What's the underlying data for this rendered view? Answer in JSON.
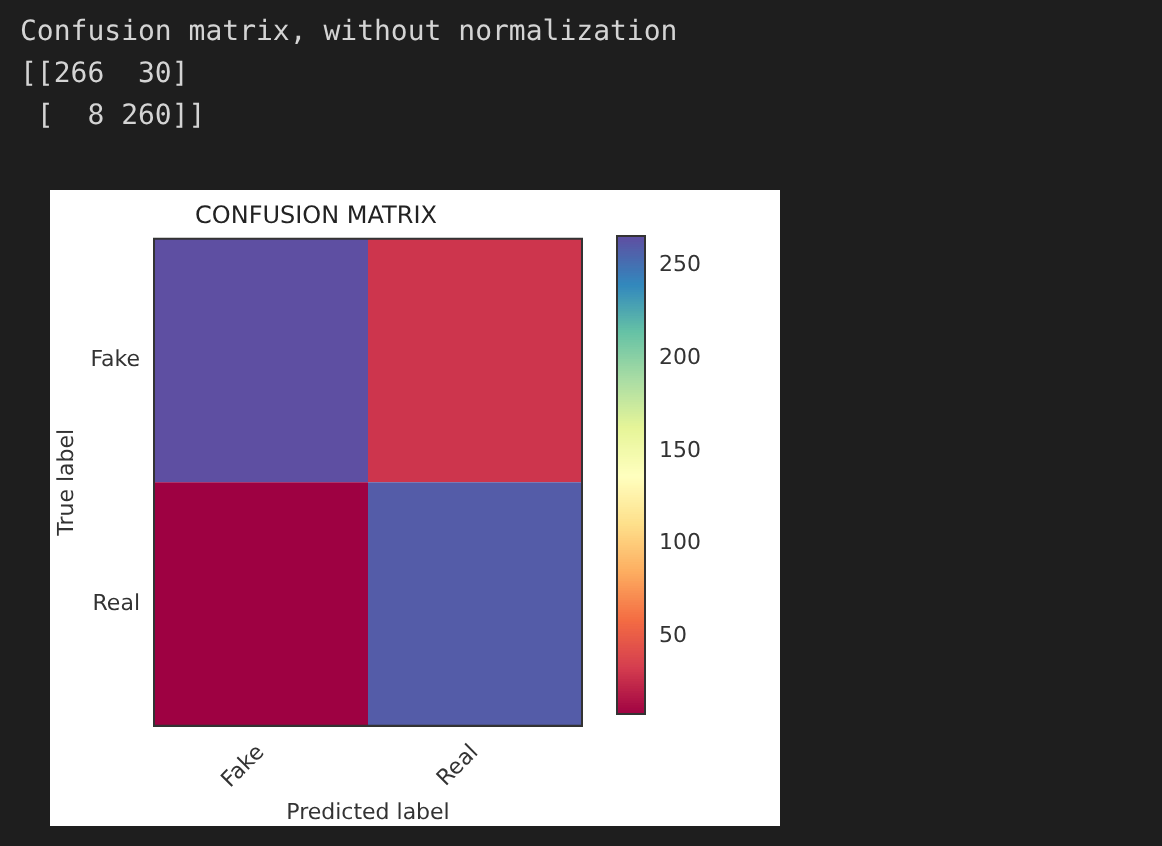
{
  "chart_data": {
    "type": "heatmap",
    "title": "CONFUSION MATRIX",
    "xlabel": "Predicted label",
    "ylabel": "True label",
    "categories": [
      "Fake",
      "Real"
    ],
    "y_categories": [
      "Fake",
      "Real"
    ],
    "cells": [
      [
        266,
        30
      ],
      [
        8,
        260
      ]
    ],
    "clim": [
      8,
      266
    ],
    "cticks": [
      50,
      100,
      150,
      200,
      250
    ],
    "annotations": [
      "Confusion matrix, without normalization",
      "[[266  30]",
      " [  8 260]]"
    ]
  }
}
